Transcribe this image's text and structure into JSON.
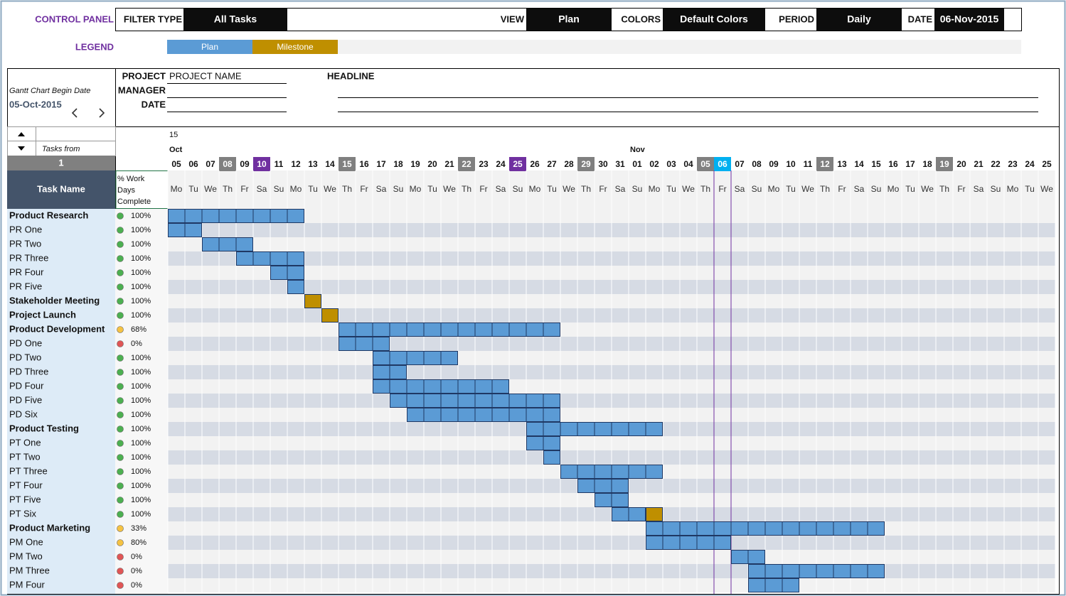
{
  "control_panel": {
    "title": "CONTROL PANEL",
    "fields": [
      {
        "label": "FILTER TYPE",
        "value": "All Tasks"
      },
      {
        "label": "VIEW",
        "value": "Plan"
      },
      {
        "label": "COLORS",
        "value": "Default Colors"
      },
      {
        "label": "PERIOD",
        "value": "Daily"
      },
      {
        "label": "DATE",
        "value": "06-Nov-2015"
      }
    ]
  },
  "legend": {
    "title": "LEGEND",
    "items": [
      {
        "label": "Plan",
        "color": "#5b9bd5"
      },
      {
        "label": "Milestone",
        "color": "#bf8f00"
      }
    ]
  },
  "begin": {
    "label": "Gantt Chart Begin Date",
    "date": "05-Oct-2015"
  },
  "project": {
    "fields": [
      {
        "label": "PROJECT",
        "value": "PROJECT NAME"
      },
      {
        "label": "MANAGER"
      },
      {
        "label": "DATE"
      }
    ],
    "headline": "HEADLINE"
  },
  "tasks_from": {
    "label": "Tasks from",
    "value": "1"
  },
  "columns": {
    "task_name": "Task Name",
    "complete": [
      "% Work",
      "Days",
      "Complete"
    ]
  },
  "timeline": {
    "week": "15",
    "months": [
      "Oct",
      "Nov"
    ],
    "today_color": "#7030a0",
    "days": [
      {
        "day": "05",
        "weekday": "Mo"
      },
      {
        "day": "06",
        "weekday": "Tu"
      },
      {
        "day": "07",
        "weekday": "We"
      },
      {
        "day": "08",
        "weekday": "Th",
        "color": "#808080"
      },
      {
        "day": "09",
        "weekday": "Fr"
      },
      {
        "day": "10",
        "weekday": "Sa",
        "color": "#7030a0"
      },
      {
        "day": "11",
        "weekday": "Su"
      },
      {
        "day": "12",
        "weekday": "Mo"
      },
      {
        "day": "13",
        "weekday": "Tu"
      },
      {
        "day": "14",
        "weekday": "We"
      },
      {
        "day": "15",
        "weekday": "Th",
        "color": "#808080"
      },
      {
        "day": "16",
        "weekday": "Fr"
      },
      {
        "day": "17",
        "weekday": "Sa"
      },
      {
        "day": "18",
        "weekday": "Su"
      },
      {
        "day": "19",
        "weekday": "Mo"
      },
      {
        "day": "20",
        "weekday": "Tu"
      },
      {
        "day": "21",
        "weekday": "We"
      },
      {
        "day": "22",
        "weekday": "Th",
        "color": "#808080"
      },
      {
        "day": "23",
        "weekday": "Fr"
      },
      {
        "day": "24",
        "weekday": "Sa"
      },
      {
        "day": "25",
        "weekday": "Su",
        "color": "#7030a0"
      },
      {
        "day": "26",
        "weekday": "Mo"
      },
      {
        "day": "27",
        "weekday": "Tu"
      },
      {
        "day": "28",
        "weekday": "We"
      },
      {
        "day": "29",
        "weekday": "Th",
        "color": "#808080"
      },
      {
        "day": "30",
        "weekday": "Fr"
      },
      {
        "day": "31",
        "weekday": "Sa"
      },
      {
        "day": "01",
        "weekday": "Su"
      },
      {
        "day": "02",
        "weekday": "Mo"
      },
      {
        "day": "03",
        "weekday": "Tu"
      },
      {
        "day": "04",
        "weekday": "We"
      },
      {
        "day": "05",
        "weekday": "Th",
        "color": "#808080"
      },
      {
        "day": "06",
        "weekday": "Fr",
        "color": "#00b0f0"
      },
      {
        "day": "07",
        "weekday": "Sa"
      },
      {
        "day": "08",
        "weekday": "Su"
      },
      {
        "day": "09",
        "weekday": "Mo"
      },
      {
        "day": "10",
        "weekday": "Tu"
      },
      {
        "day": "11",
        "weekday": "We"
      },
      {
        "day": "12",
        "weekday": "Th",
        "color": "#808080"
      },
      {
        "day": "13",
        "weekday": "Fr"
      },
      {
        "day": "14",
        "weekday": "Sa"
      },
      {
        "day": "15",
        "weekday": "Su"
      },
      {
        "day": "16",
        "weekday": "Mo"
      },
      {
        "day": "17",
        "weekday": "Tu"
      },
      {
        "day": "18",
        "weekday": "We"
      },
      {
        "day": "19",
        "weekday": "Th",
        "color": "#808080"
      },
      {
        "day": "20",
        "weekday": "Fr"
      },
      {
        "day": "21",
        "weekday": "Sa"
      },
      {
        "day": "22",
        "weekday": "Su"
      },
      {
        "day": "23",
        "weekday": "Mo"
      },
      {
        "day": "24",
        "weekday": "Tu"
      },
      {
        "day": "25",
        "weekday": "We"
      }
    ]
  },
  "tasks": [
    {
      "name": "Product Research",
      "bold": true,
      "complete": "100%",
      "status_color": "#4caf50",
      "start": "05-Oct-2015",
      "end": "12-Oct-2015"
    },
    {
      "name": "PR One",
      "complete": "100%",
      "status_color": "#4caf50",
      "start": "05-Oct-2015",
      "end": "06-Oct-2015"
    },
    {
      "name": "PR Two",
      "complete": "100%",
      "status_color": "#4caf50",
      "start": "07-Oct-2015",
      "end": "09-Oct-2015"
    },
    {
      "name": "PR Three",
      "complete": "100%",
      "status_color": "#4caf50",
      "start": "09-Oct-2015",
      "end": "12-Oct-2015"
    },
    {
      "name": "PR Four",
      "complete": "100%",
      "status_color": "#4caf50",
      "start": "11-Oct-2015",
      "end": "12-Oct-2015"
    },
    {
      "name": "PR Five",
      "complete": "100%",
      "status_color": "#4caf50",
      "start": "12-Oct-2015",
      "end": "12-Oct-2015"
    },
    {
      "name": "Stakeholder Meeting",
      "bold": true,
      "complete": "100%",
      "status_color": "#4caf50",
      "milestone": "13-Oct-2015"
    },
    {
      "name": "Project Launch",
      "bold": true,
      "complete": "100%",
      "status_color": "#4caf50",
      "milestone": "14-Oct-2015"
    },
    {
      "name": "Product Development",
      "bold": true,
      "complete": "68%",
      "status_color": "#f5c242",
      "start": "15-Oct-2015",
      "end": "27-Oct-2015"
    },
    {
      "name": "PD One",
      "complete": "0%",
      "status_color": "#e05555",
      "start": "15-Oct-2015",
      "end": "17-Oct-2015"
    },
    {
      "name": "PD Two",
      "complete": "100%",
      "status_color": "#4caf50",
      "start": "17-Oct-2015",
      "end": "21-Oct-2015"
    },
    {
      "name": "PD Three",
      "complete": "100%",
      "status_color": "#4caf50",
      "start": "17-Oct-2015",
      "end": "18-Oct-2015"
    },
    {
      "name": "PD Four",
      "complete": "100%",
      "status_color": "#4caf50",
      "start": "17-Oct-2015",
      "end": "24-Oct-2015"
    },
    {
      "name": "PD Five",
      "complete": "100%",
      "status_color": "#4caf50",
      "start": "18-Oct-2015",
      "end": "27-Oct-2015"
    },
    {
      "name": "PD Six",
      "complete": "100%",
      "status_color": "#4caf50",
      "start": "19-Oct-2015",
      "end": "27-Oct-2015"
    },
    {
      "name": "Product Testing",
      "bold": true,
      "complete": "100%",
      "status_color": "#4caf50",
      "start": "26-Oct-2015",
      "end": "02-Nov-2015"
    },
    {
      "name": "PT One",
      "complete": "100%",
      "status_color": "#4caf50",
      "start": "26-Oct-2015",
      "end": "27-Oct-2015"
    },
    {
      "name": "PT Two",
      "complete": "100%",
      "status_color": "#4caf50",
      "start": "27-Oct-2015",
      "end": "27-Oct-2015"
    },
    {
      "name": "PT Three",
      "complete": "100%",
      "status_color": "#4caf50",
      "start": "28-Oct-2015",
      "end": "02-Nov-2015"
    },
    {
      "name": "PT Four",
      "complete": "100%",
      "status_color": "#4caf50",
      "start": "29-Oct-2015",
      "end": "31-Oct-2015"
    },
    {
      "name": "PT Five",
      "complete": "100%",
      "status_color": "#4caf50",
      "start": "30-Oct-2015",
      "end": "31-Oct-2015"
    },
    {
      "name": "PT Six",
      "complete": "100%",
      "status_color": "#4caf50",
      "start": "31-Oct-2015",
      "end": "01-Nov-2015",
      "milestone": "02-Nov-2015"
    },
    {
      "name": "Product Marketing",
      "bold": true,
      "complete": "33%",
      "status_color": "#f5c242",
      "start": "02-Nov-2015",
      "end": "15-Nov-2015"
    },
    {
      "name": "PM One",
      "complete": "80%",
      "status_color": "#f5c242",
      "start": "02-Nov-2015",
      "end": "06-Nov-2015"
    },
    {
      "name": "PM Two",
      "complete": "0%",
      "status_color": "#e05555",
      "start": "07-Nov-2015",
      "end": "08-Nov-2015"
    },
    {
      "name": "PM Three",
      "complete": "0%",
      "status_color": "#e05555",
      "start": "08-Nov-2015",
      "end": "15-Nov-2015"
    },
    {
      "name": "PM Four",
      "complete": "0%",
      "status_color": "#e05555",
      "start": "08-Nov-2015",
      "end": "10-Nov-2015"
    }
  ]
}
